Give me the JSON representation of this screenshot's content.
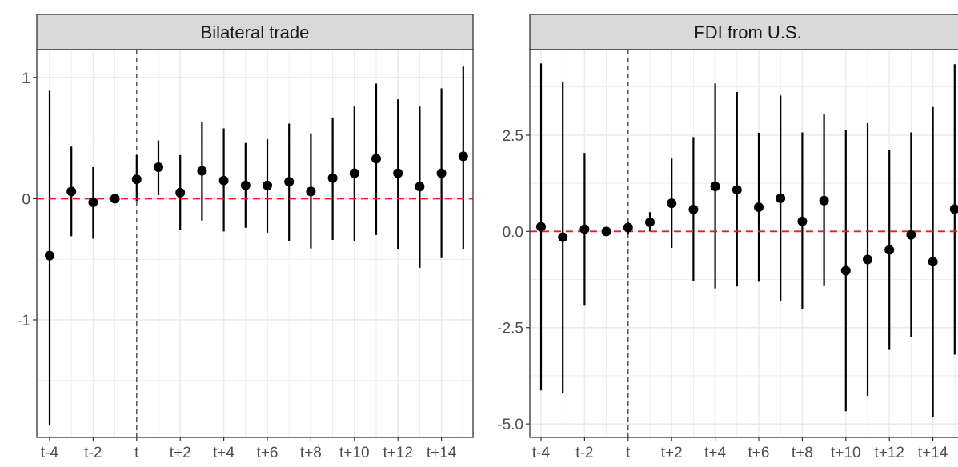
{
  "chart_data": [
    {
      "type": "scatter",
      "title": "Bilateral trade",
      "xlabel": "",
      "ylabel": "",
      "categories": [
        "t-4",
        "t-3",
        "t-2",
        "t-1",
        "t",
        "t+1",
        "t+2",
        "t+3",
        "t+4",
        "t+5",
        "t+6",
        "t+7",
        "t+8",
        "t+9",
        "t+10",
        "t+11",
        "t+12",
        "t+13",
        "t+14",
        "t+15"
      ],
      "x_tick_labels": [
        "t-4",
        "t-2",
        "t",
        "t+2",
        "t+4",
        "t+6",
        "t+8",
        "t+10",
        "t+12",
        "t+14"
      ],
      "y_ticks": [
        1,
        0,
        -1
      ],
      "y_tick_labels": [
        "1",
        "0",
        "-1"
      ],
      "ylim": [
        -1.97,
        1.23
      ],
      "series": [
        {
          "estimate": [
            -0.47,
            0.06,
            -0.03,
            0.0,
            0.16,
            0.26,
            0.05,
            0.23,
            0.15,
            0.11,
            0.11,
            0.14,
            0.06,
            0.17,
            0.21,
            0.33,
            0.21,
            0.1,
            0.21,
            0.35
          ],
          "ci_low": [
            -1.87,
            -0.31,
            -0.33,
            0.0,
            -0.02,
            0.03,
            -0.26,
            -0.18,
            -0.27,
            -0.24,
            -0.28,
            -0.35,
            -0.41,
            -0.34,
            -0.35,
            -0.3,
            -0.42,
            -0.57,
            -0.49,
            -0.42
          ],
          "ci_high": [
            0.89,
            0.43,
            0.26,
            0.0,
            0.36,
            0.48,
            0.36,
            0.63,
            0.58,
            0.46,
            0.49,
            0.62,
            0.54,
            0.67,
            0.76,
            0.95,
            0.82,
            0.76,
            0.91,
            1.09
          ]
        }
      ],
      "reference_lines": {
        "horizontal_y": 0,
        "vertical_x": "t"
      },
      "colors": {
        "point": "#000000",
        "hline": "#ee1c1c",
        "vline": "#555555",
        "strip": "#d9d9d9",
        "grid": "#ebebeb"
      },
      "grid": true,
      "legend": "none"
    },
    {
      "type": "scatter",
      "title": "FDI from U.S.",
      "xlabel": "",
      "ylabel": "",
      "categories": [
        "t-4",
        "t-3",
        "t-2",
        "t-1",
        "t",
        "t+1",
        "t+2",
        "t+3",
        "t+4",
        "t+5",
        "t+6",
        "t+7",
        "t+8",
        "t+9",
        "t+10",
        "t+11",
        "t+12",
        "t+13",
        "t+14",
        "t+15"
      ],
      "x_tick_labels": [
        "t-4",
        "t-2",
        "t",
        "t+2",
        "t+4",
        "t+6",
        "t+8",
        "t+10",
        "t+12",
        "t+14"
      ],
      "y_ticks": [
        2.5,
        0.0,
        -2.5,
        -5.0
      ],
      "y_tick_labels": [
        "2.5",
        "0.0",
        "-2.5",
        "-5.0"
      ],
      "ylim": [
        -5.35,
        4.72
      ],
      "series": [
        {
          "estimate": [
            0.12,
            -0.15,
            0.06,
            0.0,
            0.1,
            0.24,
            0.73,
            0.57,
            1.17,
            1.08,
            0.63,
            0.86,
            0.26,
            0.8,
            -1.02,
            -0.73,
            -0.48,
            -0.09,
            -0.79,
            0.58
          ],
          "ci_low": [
            -4.13,
            -4.19,
            -1.93,
            0.0,
            -0.08,
            0.0,
            -0.43,
            -1.29,
            -1.48,
            -1.43,
            -1.31,
            -1.8,
            -2.02,
            -1.42,
            -4.67,
            -4.27,
            -3.08,
            -2.75,
            -4.83,
            -3.2
          ],
          "ci_high": [
            4.36,
            3.87,
            2.04,
            0.0,
            0.25,
            0.5,
            1.89,
            2.45,
            3.84,
            3.62,
            2.56,
            3.53,
            2.57,
            3.04,
            2.63,
            2.81,
            2.12,
            2.57,
            3.23,
            4.34
          ]
        }
      ],
      "reference_lines": {
        "horizontal_y": 0,
        "vertical_x": "t"
      },
      "colors": {
        "point": "#000000",
        "hline": "#ee1c1c",
        "vline": "#555555",
        "strip": "#d9d9d9",
        "grid": "#ebebeb"
      },
      "grid": true,
      "legend": "none"
    }
  ]
}
